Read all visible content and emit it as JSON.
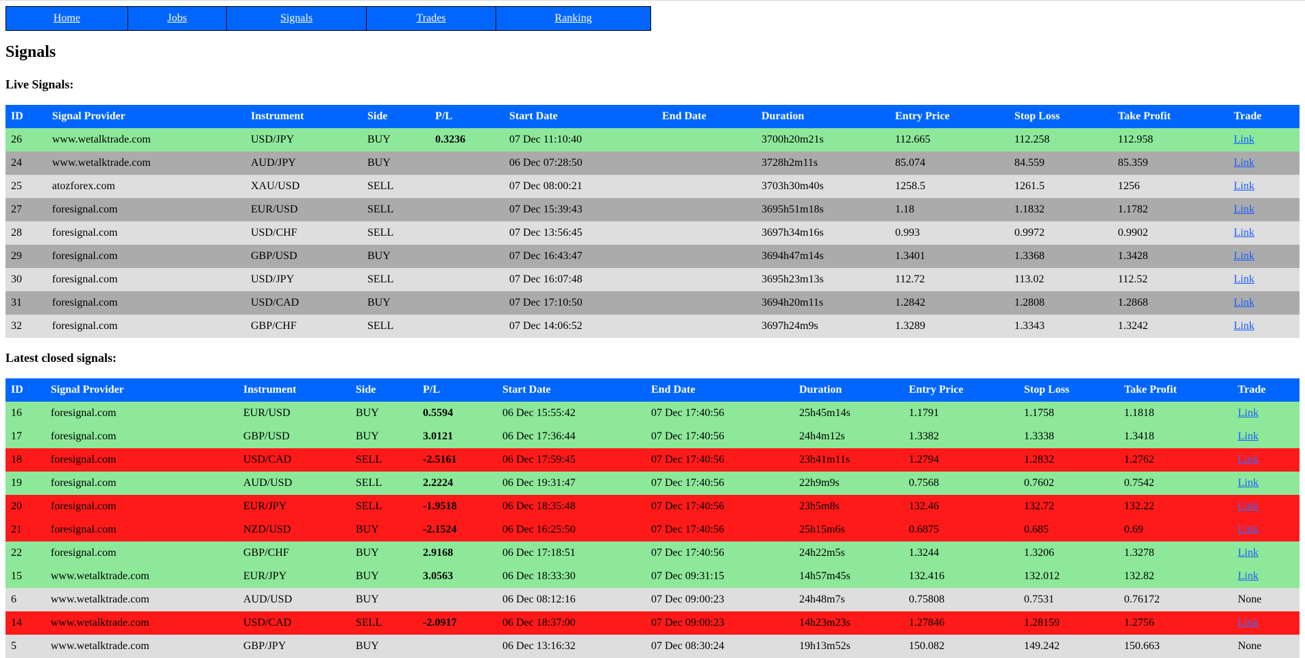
{
  "nav": [
    {
      "label": "Home"
    },
    {
      "label": "Jobs"
    },
    {
      "label": "Signals"
    },
    {
      "label": "Trades"
    },
    {
      "label": "Ranking"
    }
  ],
  "page_title": "Signals",
  "live": {
    "heading": "Live Signals:",
    "columns": [
      "ID",
      "Signal Provider",
      "Instrument",
      "Side",
      "P/L",
      "Start Date",
      "End Date",
      "Duration",
      "Entry Price",
      "Stop Loss",
      "Take Profit",
      "Trade"
    ],
    "rows": [
      {
        "id": "26",
        "provider": "www.wetalktrade.com",
        "instrument": "USD/JPY",
        "side": "BUY",
        "pl": "0.3236",
        "start": "07 Dec 11:10:40",
        "end": "",
        "duration": "3700h20m21s",
        "entry": "112.665",
        "stop": "112.258",
        "take": "112.958",
        "trade": "Link",
        "color": "green"
      },
      {
        "id": "24",
        "provider": "www.wetalktrade.com",
        "instrument": "AUD/JPY",
        "side": "BUY",
        "pl": "",
        "start": "06 Dec 07:28:50",
        "end": "",
        "duration": "3728h2m11s",
        "entry": "85.074",
        "stop": "84.559",
        "take": "85.359",
        "trade": "Link",
        "color": "grey-dark"
      },
      {
        "id": "25",
        "provider": "atozforex.com",
        "instrument": "XAU/USD",
        "side": "SELL",
        "pl": "",
        "start": "07 Dec 08:00:21",
        "end": "",
        "duration": "3703h30m40s",
        "entry": "1258.5",
        "stop": "1261.5",
        "take": "1256",
        "trade": "Link",
        "color": "grey-light"
      },
      {
        "id": "27",
        "provider": "foresignal.com",
        "instrument": "EUR/USD",
        "side": "SELL",
        "pl": "",
        "start": "07 Dec 15:39:43",
        "end": "",
        "duration": "3695h51m18s",
        "entry": "1.18",
        "stop": "1.1832",
        "take": "1.1782",
        "trade": "Link",
        "color": "grey-dark"
      },
      {
        "id": "28",
        "provider": "foresignal.com",
        "instrument": "USD/CHF",
        "side": "SELL",
        "pl": "",
        "start": "07 Dec 13:56:45",
        "end": "",
        "duration": "3697h34m16s",
        "entry": "0.993",
        "stop": "0.9972",
        "take": "0.9902",
        "trade": "Link",
        "color": "grey-light"
      },
      {
        "id": "29",
        "provider": "foresignal.com",
        "instrument": "GBP/USD",
        "side": "BUY",
        "pl": "",
        "start": "07 Dec 16:43:47",
        "end": "",
        "duration": "3694h47m14s",
        "entry": "1.3401",
        "stop": "1.3368",
        "take": "1.3428",
        "trade": "Link",
        "color": "grey-dark"
      },
      {
        "id": "30",
        "provider": "foresignal.com",
        "instrument": "USD/JPY",
        "side": "SELL",
        "pl": "",
        "start": "07 Dec 16:07:48",
        "end": "",
        "duration": "3695h23m13s",
        "entry": "112.72",
        "stop": "113.02",
        "take": "112.52",
        "trade": "Link",
        "color": "grey-light"
      },
      {
        "id": "31",
        "provider": "foresignal.com",
        "instrument": "USD/CAD",
        "side": "BUY",
        "pl": "",
        "start": "07 Dec 17:10:50",
        "end": "",
        "duration": "3694h20m11s",
        "entry": "1.2842",
        "stop": "1.2808",
        "take": "1.2868",
        "trade": "Link",
        "color": "grey-dark"
      },
      {
        "id": "32",
        "provider": "foresignal.com",
        "instrument": "GBP/CHF",
        "side": "SELL",
        "pl": "",
        "start": "07 Dec 14:06:52",
        "end": "",
        "duration": "3697h24m9s",
        "entry": "1.3289",
        "stop": "1.3343",
        "take": "1.3242",
        "trade": "Link",
        "color": "grey-light"
      }
    ]
  },
  "closed": {
    "heading": "Latest closed signals:",
    "columns": [
      "ID",
      "Signal Provider",
      "Instrument",
      "Side",
      "P/L",
      "Start Date",
      "End Date",
      "Duration",
      "Entry Price",
      "Stop Loss",
      "Take Profit",
      "Trade"
    ],
    "rows": [
      {
        "id": "16",
        "provider": "foresignal.com",
        "instrument": "EUR/USD",
        "side": "BUY",
        "pl": "0.5594",
        "start": "06 Dec 15:55:42",
        "end": "07 Dec 17:40:56",
        "duration": "25h45m14s",
        "entry": "1.1791",
        "stop": "1.1758",
        "take": "1.1818",
        "trade": "Link",
        "color": "green"
      },
      {
        "id": "17",
        "provider": "foresignal.com",
        "instrument": "GBP/USD",
        "side": "BUY",
        "pl": "3.0121",
        "start": "06 Dec 17:36:44",
        "end": "07 Dec 17:40:56",
        "duration": "24h4m12s",
        "entry": "1.3382",
        "stop": "1.3338",
        "take": "1.3418",
        "trade": "Link",
        "color": "green"
      },
      {
        "id": "18",
        "provider": "foresignal.com",
        "instrument": "USD/CAD",
        "side": "SELL",
        "pl": "-2.5161",
        "start": "06 Dec 17:59:45",
        "end": "07 Dec 17:40:56",
        "duration": "23h41m11s",
        "entry": "1.2794",
        "stop": "1.2832",
        "take": "1.2762",
        "trade": "Link",
        "color": "red"
      },
      {
        "id": "19",
        "provider": "foresignal.com",
        "instrument": "AUD/USD",
        "side": "SELL",
        "pl": "2.2224",
        "start": "06 Dec 19:31:47",
        "end": "07 Dec 17:40:56",
        "duration": "22h9m9s",
        "entry": "0.7568",
        "stop": "0.7602",
        "take": "0.7542",
        "trade": "Link",
        "color": "green"
      },
      {
        "id": "20",
        "provider": "foresignal.com",
        "instrument": "EUR/JPY",
        "side": "SELL",
        "pl": "-1.9518",
        "start": "06 Dec 18:35:48",
        "end": "07 Dec 17:40:56",
        "duration": "23h5m8s",
        "entry": "132.46",
        "stop": "132.72",
        "take": "132.22",
        "trade": "Link",
        "color": "red"
      },
      {
        "id": "21",
        "provider": "foresignal.com",
        "instrument": "NZD/USD",
        "side": "BUY",
        "pl": "-2.1524",
        "start": "06 Dec 16:25:50",
        "end": "07 Dec 17:40:56",
        "duration": "25h15m6s",
        "entry": "0.6875",
        "stop": "0.685",
        "take": "0.69",
        "trade": "Link",
        "color": "red"
      },
      {
        "id": "22",
        "provider": "foresignal.com",
        "instrument": "GBP/CHF",
        "side": "BUY",
        "pl": "2.9168",
        "start": "06 Dec 17:18:51",
        "end": "07 Dec 17:40:56",
        "duration": "24h22m5s",
        "entry": "1.3244",
        "stop": "1.3206",
        "take": "1.3278",
        "trade": "Link",
        "color": "green"
      },
      {
        "id": "15",
        "provider": "www.wetalktrade.com",
        "instrument": "EUR/JPY",
        "side": "BUY",
        "pl": "3.0563",
        "start": "06 Dec 18:33:30",
        "end": "07 Dec 09:31:15",
        "duration": "14h57m45s",
        "entry": "132.416",
        "stop": "132.012",
        "take": "132.82",
        "trade": "Link",
        "color": "green"
      },
      {
        "id": "6",
        "provider": "www.wetalktrade.com",
        "instrument": "AUD/USD",
        "side": "BUY",
        "pl": "",
        "start": "06 Dec 08:12:16",
        "end": "07 Dec 09:00:23",
        "duration": "24h48m7s",
        "entry": "0.75808",
        "stop": "0.7531",
        "take": "0.76172",
        "trade": "None",
        "color": "grey-light"
      },
      {
        "id": "14",
        "provider": "www.wetalktrade.com",
        "instrument": "USD/CAD",
        "side": "SELL",
        "pl": "-2.0917",
        "start": "06 Dec 18:37:00",
        "end": "07 Dec 09:00:23",
        "duration": "14h23m23s",
        "entry": "1.27846",
        "stop": "1.28159",
        "take": "1.2756",
        "trade": "Link",
        "color": "red"
      },
      {
        "id": "5",
        "provider": "www.wetalktrade.com",
        "instrument": "GBP/JPY",
        "side": "BUY",
        "pl": "",
        "start": "06 Dec 13:16:32",
        "end": "07 Dec 08:30:24",
        "duration": "19h13m52s",
        "entry": "150.082",
        "stop": "149.242",
        "take": "150.663",
        "trade": "None",
        "color": "grey-light"
      }
    ]
  }
}
